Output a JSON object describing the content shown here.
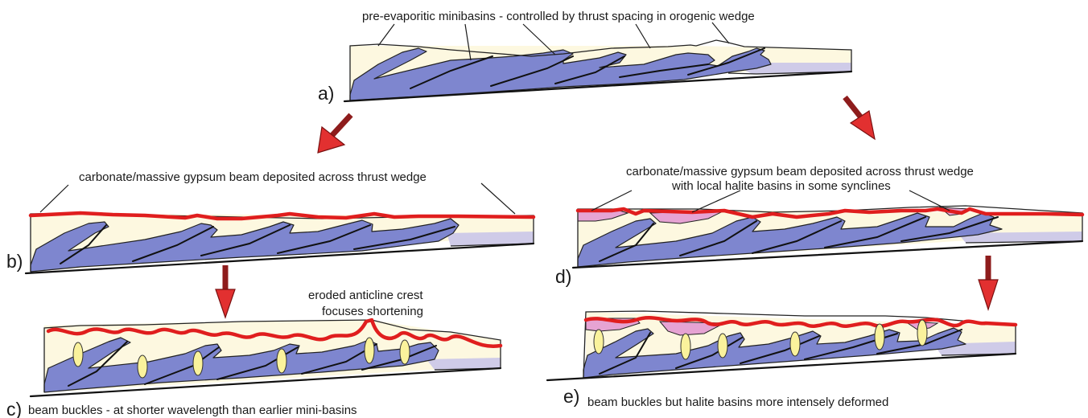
{
  "panels": {
    "a": {
      "label": "a)",
      "caption": "pre-evaporitic minibasins - controlled by thrust spacing in orogenic wedge"
    },
    "b": {
      "label": "b)",
      "caption": "carbonate/massive gypsum beam deposited across thrust wedge"
    },
    "c": {
      "label": "c)",
      "caption": "beam buckles - at shorter wavelength than earlier mini-basins",
      "annotation_line1": "eroded anticline crest",
      "annotation_line2": "focuses shortening"
    },
    "d": {
      "label": "d)",
      "caption_line1": "carbonate/massive gypsum beam deposited across thrust wedge",
      "caption_line2": "with local halite basins in some synclines"
    },
    "e": {
      "label": "e)",
      "caption": "beam buckles but halite basins more intensely deformed"
    }
  },
  "colors": {
    "thrust_sheet": "#7e86cf",
    "basin_fill": "#fdf8e0",
    "underlying_strata": "#cfcbe8",
    "evaporite_beam": "#e01e1e",
    "halite_basin": "#e6a3d3",
    "strain_marker": "#faf29c",
    "arrow": "#e23030"
  }
}
